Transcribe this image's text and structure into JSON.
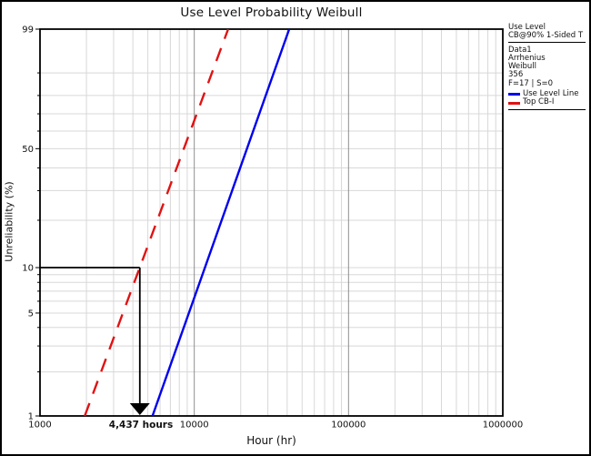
{
  "title": "Use Level Probability Weibull",
  "xlabel": "Hour (hr)",
  "ylabel": "Unreliability (%)",
  "annotation": {
    "label": "4,437 hours",
    "hours": 4437,
    "at_unreliability_pct": 10
  },
  "legend": {
    "title_lines": [
      "Use Level",
      "CB@90% 1-Sided T"
    ],
    "info_lines": [
      "Data1",
      "Arrhenius",
      "Weibull",
      "356",
      "F=17 | S=0"
    ],
    "entries": [
      {
        "label": "Use Level Line",
        "color": "#0000f0",
        "line_style": "solid"
      },
      {
        "label": "Top CB-I",
        "color": "#e11212",
        "line_style": "dashed"
      }
    ]
  },
  "chart_data": {
    "type": "line",
    "title": "Use Level Probability Weibull",
    "xlabel": "Hour (hr)",
    "ylabel": "Unreliability (%)",
    "x_scale": "log10",
    "y_scale": "weibull-probability",
    "xlim": [
      1000,
      1000000
    ],
    "ylim_pct": [
      1,
      99
    ],
    "grid": true,
    "legend_position": "outside-top-right",
    "x_major_ticks": [
      1000,
      10000,
      100000,
      1000000
    ],
    "x_tick_labels": [
      "1000",
      "10000",
      "100000",
      "1000000"
    ],
    "y_labeled_ticks": [
      99,
      50,
      10,
      5,
      1
    ],
    "y_gridlines_pct": [
      1,
      2,
      3,
      4,
      5,
      6,
      7,
      8,
      9,
      10,
      20,
      30,
      40,
      50,
      60,
      70,
      80,
      90,
      99
    ],
    "colors": {
      "grid_minor": "#d8d8d8",
      "grid_decade": "#8f8f8f",
      "axis": "#000000",
      "annotation": "#000000"
    },
    "series": [
      {
        "name": "Use Level Line",
        "color": "#0000f0",
        "style": "solid",
        "points": [
          {
            "unreliability_pct": 1,
            "hours": 5360
          },
          {
            "unreliability_pct": 99,
            "hours": 41250
          }
        ]
      },
      {
        "name": "Top CB-I",
        "color": "#e11212",
        "style": "dashed",
        "points": [
          {
            "unreliability_pct": 1,
            "hours": 1950
          },
          {
            "unreliability_pct": 99,
            "hours": 16580
          }
        ]
      }
    ],
    "annotation": {
      "label": "4,437 hours",
      "hours": 4437,
      "at_unreliability_pct": 10
    }
  }
}
